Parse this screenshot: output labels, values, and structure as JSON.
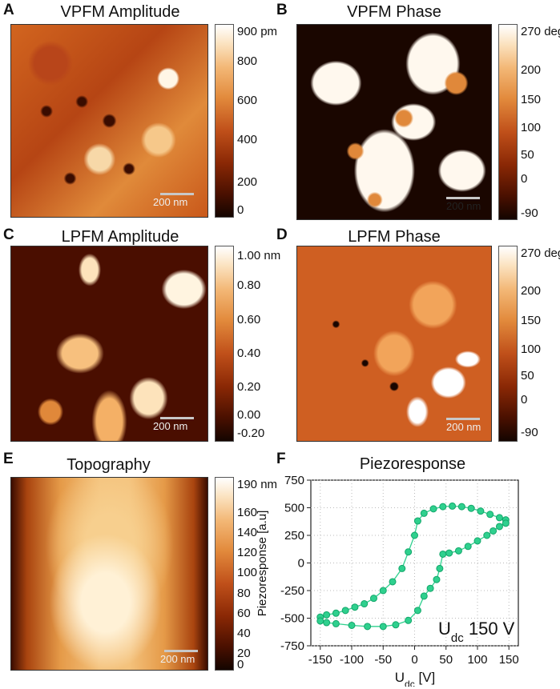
{
  "panels": {
    "A": {
      "letter": "A",
      "title": "VPFM Amplitude",
      "scale": "200 nm",
      "ticks": [
        "900 pm",
        "800",
        "600",
        "400",
        "200",
        "0"
      ]
    },
    "B": {
      "letter": "B",
      "title": "VPFM Phase",
      "scale": "200 nm",
      "ticks": [
        "270 deg",
        "200",
        "150",
        "100",
        "50",
        "0",
        "-90"
      ]
    },
    "C": {
      "letter": "C",
      "title": "LPFM Amplitude",
      "scale": "200 nm",
      "ticks": [
        "1.00 nm",
        "0.80",
        "0.60",
        "0.40",
        "0.20",
        "0.00",
        "-0.20"
      ]
    },
    "D": {
      "letter": "D",
      "title": "LPFM Phase",
      "scale": "200 nm",
      "ticks": [
        "270 deg",
        "200",
        "150",
        "100",
        "50",
        "0",
        "-90"
      ]
    },
    "E": {
      "letter": "E",
      "title": "Topography",
      "scale": "200 nm",
      "ticks": [
        "190 nm",
        "160",
        "140",
        "120",
        "100",
        "80",
        "60",
        "40",
        "20",
        "0"
      ]
    },
    "F": {
      "letter": "F",
      "title": "Piezoresponse"
    }
  },
  "colors": {
    "marker": "#2fd08e",
    "marker_edge": "#12a66a",
    "line": "#2fd08e"
  },
  "chart_data": {
    "type": "scatter",
    "title": "Piezoresponse",
    "xlabel_main": "U",
    "xlabel_sub": "dc",
    "xlabel_unit": " [V]",
    "ylabel": "Piezoresponse [a.u]",
    "annotation_main": "U",
    "annotation_sub": "dc",
    "annotation_value": " 150 V",
    "xlim": [
      -165,
      165
    ],
    "ylim": [
      -750,
      750
    ],
    "xticks": [
      -150,
      -100,
      -50,
      0,
      50,
      100,
      150
    ],
    "yticks": [
      750,
      500,
      250,
      0,
      -250,
      -500,
      -750
    ],
    "grid": "dotted",
    "series": [
      {
        "values": [
          [
            -150,
            -490
          ],
          [
            -140,
            -470
          ],
          [
            -125,
            -455
          ],
          [
            -110,
            -430
          ],
          [
            -95,
            -400
          ],
          [
            -80,
            -370
          ],
          [
            -65,
            -320
          ],
          [
            -50,
            -250
          ],
          [
            -35,
            -170
          ],
          [
            -20,
            -50
          ],
          [
            -10,
            100
          ],
          [
            0,
            250
          ],
          [
            5,
            380
          ],
          [
            15,
            450
          ],
          [
            30,
            490
          ],
          [
            45,
            510
          ],
          [
            60,
            515
          ],
          [
            75,
            510
          ],
          [
            90,
            495
          ],
          [
            105,
            470
          ],
          [
            120,
            440
          ],
          [
            135,
            410
          ],
          [
            145,
            390
          ],
          [
            145,
            360
          ],
          [
            135,
            330
          ],
          [
            125,
            290
          ],
          [
            115,
            250
          ],
          [
            100,
            200
          ],
          [
            85,
            150
          ],
          [
            70,
            110
          ],
          [
            55,
            90
          ],
          [
            45,
            80
          ],
          [
            40,
            -50
          ],
          [
            35,
            -150
          ],
          [
            25,
            -230
          ],
          [
            15,
            -300
          ],
          [
            5,
            -430
          ],
          [
            -10,
            -520
          ],
          [
            -30,
            -560
          ],
          [
            -50,
            -575
          ],
          [
            -75,
            -575
          ],
          [
            -100,
            -565
          ],
          [
            -125,
            -550
          ],
          [
            -140,
            -540
          ],
          [
            -150,
            -525
          ]
        ]
      }
    ]
  }
}
